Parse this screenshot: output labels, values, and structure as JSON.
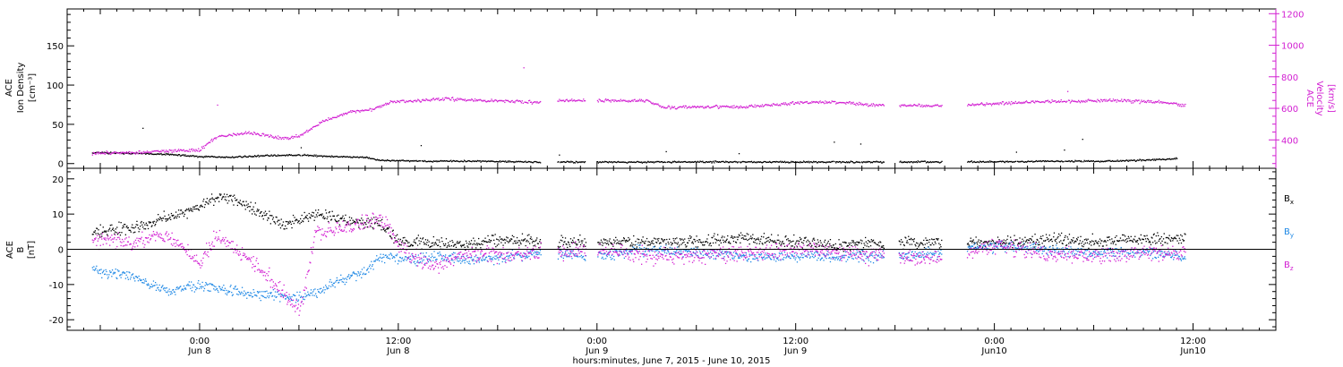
{
  "chart_data": [
    {
      "type": "scatter",
      "panel": "top",
      "ylabel_left": [
        "ACE",
        "Ion Density",
        "[cm⁻³]"
      ],
      "ylabel_right": [
        "ACE",
        "Velocity",
        "[km/s]"
      ],
      "ylim_left": [
        -6,
        197
      ],
      "ylim_right": [
        220,
        1230
      ],
      "yticks_left": [
        "0",
        "50",
        "100",
        "150"
      ],
      "yticks_right": [
        "400",
        "600",
        "800",
        "1000",
        "1200"
      ],
      "series": [
        {
          "axis": "left",
          "color": "#000000",
          "values_by_hour": [
            {
              "x": -6.5,
              "y": 14
            },
            {
              "x": -4,
              "y": 13
            },
            {
              "x": -2,
              "y": 12
            },
            {
              "x": 0,
              "y": 9
            },
            {
              "x": 2,
              "y": 8
            },
            {
              "x": 4,
              "y": 10
            },
            {
              "x": 6,
              "y": 11
            },
            {
              "x": 8,
              "y": 9
            },
            {
              "x": 10,
              "y": 8
            },
            {
              "x": 11,
              "y": 4
            },
            {
              "x": 14,
              "y": 3
            },
            {
              "x": 17,
              "y": 3
            },
            {
              "x": 20.5,
              "y": 2
            },
            {
              "x": 24,
              "y": 2
            },
            {
              "x": 30,
              "y": 2
            },
            {
              "x": 36,
              "y": 2
            },
            {
              "x": 38,
              "y": 2
            },
            {
              "x": 43,
              "y": 2
            },
            {
              "x": 47,
              "y": 2
            },
            {
              "x": 51,
              "y": 3
            },
            {
              "x": 55,
              "y": 3
            },
            {
              "x": 59,
              "y": 6
            }
          ]
        },
        {
          "axis": "right",
          "color": "#d21ed2",
          "values_by_hour": [
            {
              "x": -6.5,
              "y": 315
            },
            {
              "x": -4,
              "y": 320
            },
            {
              "x": -2,
              "y": 330
            },
            {
              "x": 0,
              "y": 335
            },
            {
              "x": 1,
              "y": 420
            },
            {
              "x": 3,
              "y": 445
            },
            {
              "x": 5,
              "y": 410
            },
            {
              "x": 6,
              "y": 425
            },
            {
              "x": 7.5,
              "y": 520
            },
            {
              "x": 9,
              "y": 575
            },
            {
              "x": 10.5,
              "y": 595
            },
            {
              "x": 11.5,
              "y": 640
            },
            {
              "x": 13,
              "y": 650
            },
            {
              "x": 15,
              "y": 660
            },
            {
              "x": 17,
              "y": 650
            },
            {
              "x": 20.5,
              "y": 635
            },
            {
              "x": 22,
              "y": 650
            },
            {
              "x": 24,
              "y": 650
            },
            {
              "x": 27,
              "y": 650
            },
            {
              "x": 28,
              "y": 605
            },
            {
              "x": 30,
              "y": 610
            },
            {
              "x": 33,
              "y": 610
            },
            {
              "x": 36,
              "y": 635
            },
            {
              "x": 38.5,
              "y": 640
            },
            {
              "x": 40,
              "y": 625
            },
            {
              "x": 44,
              "y": 615
            },
            {
              "x": 46,
              "y": 620
            },
            {
              "x": 49,
              "y": 635
            },
            {
              "x": 52,
              "y": 645
            },
            {
              "x": 55,
              "y": 650
            },
            {
              "x": 58,
              "y": 640
            },
            {
              "x": 59.5,
              "y": 620
            }
          ]
        }
      ]
    },
    {
      "type": "scatter",
      "panel": "bottom",
      "ylabel": [
        "ACE",
        "B",
        "[nT]"
      ],
      "ylim": [
        -23,
        23
      ],
      "yticks": [
        "-20",
        "-10",
        "0",
        "10",
        "20"
      ],
      "legend_position": "right",
      "series": [
        {
          "name": "Bx",
          "color": "#000000",
          "values_by_hour": [
            {
              "x": -6.5,
              "y": 5
            },
            {
              "x": -4,
              "y": 6
            },
            {
              "x": -2,
              "y": 9
            },
            {
              "x": 0,
              "y": 12
            },
            {
              "x": 1,
              "y": 15
            },
            {
              "x": 3,
              "y": 12
            },
            {
              "x": 5,
              "y": 7
            },
            {
              "x": 7,
              "y": 10
            },
            {
              "x": 9,
              "y": 8
            },
            {
              "x": 11,
              "y": 7
            },
            {
              "x": 12,
              "y": 2
            },
            {
              "x": 14,
              "y": 2
            },
            {
              "x": 16,
              "y": 1
            },
            {
              "x": 18,
              "y": 3
            },
            {
              "x": 20.5,
              "y": 2
            },
            {
              "x": 24,
              "y": 2
            },
            {
              "x": 27,
              "y": 2
            },
            {
              "x": 30,
              "y": 2
            },
            {
              "x": 33,
              "y": 3
            },
            {
              "x": 36,
              "y": 2
            },
            {
              "x": 38.5,
              "y": 1
            },
            {
              "x": 42,
              "y": 2
            },
            {
              "x": 45,
              "y": 2
            },
            {
              "x": 48,
              "y": 2
            },
            {
              "x": 51,
              "y": 3
            },
            {
              "x": 54,
              "y": 2
            },
            {
              "x": 57,
              "y": 3
            },
            {
              "x": 59.5,
              "y": 3
            }
          ]
        },
        {
          "name": "By",
          "color": "#1e88e5",
          "values_by_hour": [
            {
              "x": -6.5,
              "y": -6
            },
            {
              "x": -4,
              "y": -8
            },
            {
              "x": -2,
              "y": -12
            },
            {
              "x": 0,
              "y": -10
            },
            {
              "x": 2,
              "y": -12
            },
            {
              "x": 4,
              "y": -13
            },
            {
              "x": 6,
              "y": -14
            },
            {
              "x": 8,
              "y": -10
            },
            {
              "x": 10,
              "y": -6
            },
            {
              "x": 11,
              "y": -2
            },
            {
              "x": 13,
              "y": -3
            },
            {
              "x": 15,
              "y": -2
            },
            {
              "x": 17,
              "y": -3
            },
            {
              "x": 20.5,
              "y": -1
            },
            {
              "x": 24,
              "y": -2
            },
            {
              "x": 27,
              "y": 0
            },
            {
              "x": 30,
              "y": -1
            },
            {
              "x": 33,
              "y": -2
            },
            {
              "x": 36,
              "y": -2
            },
            {
              "x": 38.5,
              "y": -2
            },
            {
              "x": 42,
              "y": -2
            },
            {
              "x": 45,
              "y": -1
            },
            {
              "x": 48,
              "y": 1
            },
            {
              "x": 51,
              "y": 0
            },
            {
              "x": 54,
              "y": -1
            },
            {
              "x": 57,
              "y": -1
            },
            {
              "x": 59.5,
              "y": -2
            }
          ]
        },
        {
          "name": "Bz",
          "color": "#d21ed2",
          "values_by_hour": [
            {
              "x": -6.5,
              "y": 3
            },
            {
              "x": -4,
              "y": 2
            },
            {
              "x": -2,
              "y": 4
            },
            {
              "x": 0,
              "y": -4
            },
            {
              "x": 1,
              "y": 4
            },
            {
              "x": 3,
              "y": -3
            },
            {
              "x": 5,
              "y": -12
            },
            {
              "x": 6,
              "y": -18
            },
            {
              "x": 7,
              "y": 5
            },
            {
              "x": 9,
              "y": 6
            },
            {
              "x": 11,
              "y": 9
            },
            {
              "x": 12,
              "y": 1
            },
            {
              "x": 14,
              "y": -5
            },
            {
              "x": 16,
              "y": -1
            },
            {
              "x": 18,
              "y": -2
            },
            {
              "x": 20.5,
              "y": -1
            },
            {
              "x": 24,
              "y": 0
            },
            {
              "x": 27,
              "y": -2
            },
            {
              "x": 30,
              "y": -2
            },
            {
              "x": 33,
              "y": -1
            },
            {
              "x": 36,
              "y": 0
            },
            {
              "x": 38.5,
              "y": -1
            },
            {
              "x": 42,
              "y": -2
            },
            {
              "x": 45,
              "y": -3
            },
            {
              "x": 48,
              "y": 1
            },
            {
              "x": 51,
              "y": -1
            },
            {
              "x": 54,
              "y": -2
            },
            {
              "x": 57,
              "y": -1
            },
            {
              "x": 59.5,
              "y": -1
            }
          ]
        }
      ]
    }
  ],
  "xaxis": {
    "label": "hours:minutes, June  7, 2015 - June 10, 2015",
    "hour_range": [
      -8,
      65
    ],
    "ticks": [
      {
        "hour": 0,
        "time": "0:00",
        "day": "Jun 8"
      },
      {
        "hour": 12,
        "time": "12:00",
        "day": "Jun 8"
      },
      {
        "hour": 24,
        "time": "0:00",
        "day": "Jun 9"
      },
      {
        "hour": 36,
        "time": "12:00",
        "day": "Jun 9"
      },
      {
        "hour": 48,
        "time": "0:00",
        "day": "Jun10"
      },
      {
        "hour": 60,
        "time": "12:00",
        "day": "Jun10"
      }
    ]
  }
}
